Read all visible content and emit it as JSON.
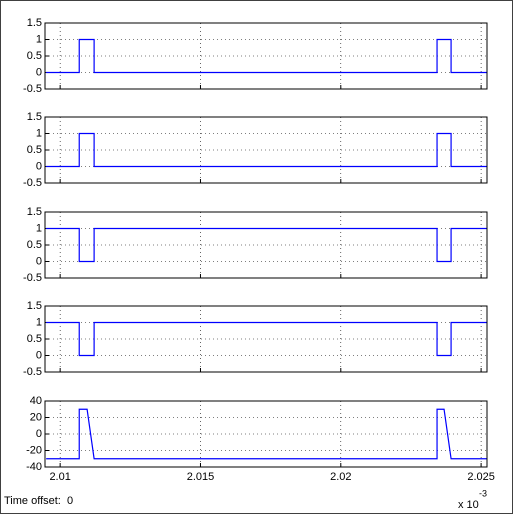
{
  "chart_data": [
    {
      "type": "line",
      "xlim": [
        2.00946,
        2.02521
      ],
      "xticks": [
        2.01,
        2.015,
        2.02,
        2.025
      ],
      "ylim": [
        -0.5,
        1.5
      ],
      "yticks": [
        -0.5,
        0,
        0.5,
        1,
        1.5
      ],
      "grid": true,
      "x": [
        2.0095,
        2.01068,
        2.01068,
        2.01121,
        2.01121,
        2.02343,
        2.02343,
        2.02393,
        2.02393,
        2.0252
      ],
      "series": [
        {
          "color": "#0000ff",
          "values": [
            0,
            0,
            1,
            1,
            0,
            0,
            1,
            1,
            0,
            0
          ]
        }
      ]
    },
    {
      "type": "line",
      "xlim": [
        2.00946,
        2.02521
      ],
      "xticks": [
        2.01,
        2.015,
        2.02,
        2.025
      ],
      "ylim": [
        -0.5,
        1.5
      ],
      "yticks": [
        -0.5,
        0,
        0.5,
        1,
        1.5
      ],
      "grid": true,
      "x": [
        2.0095,
        2.01068,
        2.01068,
        2.01121,
        2.01121,
        2.02343,
        2.02343,
        2.02393,
        2.02393,
        2.0252
      ],
      "series": [
        {
          "color": "#0000ff",
          "values": [
            0,
            0,
            1,
            1,
            0,
            0,
            1,
            1,
            0,
            0
          ]
        }
      ]
    },
    {
      "type": "line",
      "xlim": [
        2.00946,
        2.02521
      ],
      "xticks": [
        2.01,
        2.015,
        2.02,
        2.025
      ],
      "ylim": [
        -0.5,
        1.5
      ],
      "yticks": [
        -0.5,
        0,
        0.5,
        1,
        1.5
      ],
      "grid": true,
      "x": [
        2.0095,
        2.01068,
        2.01068,
        2.01121,
        2.01121,
        2.02343,
        2.02343,
        2.02393,
        2.02393,
        2.0252
      ],
      "series": [
        {
          "color": "#0000ff",
          "values": [
            1,
            1,
            0,
            0,
            1,
            1,
            0,
            0,
            1,
            1
          ]
        }
      ]
    },
    {
      "type": "line",
      "xlim": [
        2.00946,
        2.02521
      ],
      "xticks": [
        2.01,
        2.015,
        2.02,
        2.025
      ],
      "ylim": [
        -0.5,
        1.5
      ],
      "yticks": [
        -0.5,
        0,
        0.5,
        1,
        1.5
      ],
      "grid": true,
      "x": [
        2.0095,
        2.01068,
        2.01068,
        2.01121,
        2.01121,
        2.02343,
        2.02343,
        2.02393,
        2.02393,
        2.0252
      ],
      "series": [
        {
          "color": "#0000ff",
          "values": [
            1,
            1,
            0,
            0,
            1,
            1,
            0,
            0,
            1,
            1
          ]
        }
      ]
    },
    {
      "type": "line",
      "xlim": [
        2.00946,
        2.02521
      ],
      "xticks": [
        2.01,
        2.015,
        2.02,
        2.025
      ],
      "ylim": [
        -40,
        40
      ],
      "yticks": [
        -40,
        -20,
        0,
        20,
        40
      ],
      "grid": true,
      "x": [
        2.0095,
        2.01068,
        2.01068,
        2.01096,
        2.01121,
        2.02343,
        2.02343,
        2.02368,
        2.02393,
        2.0252
      ],
      "series": [
        {
          "color": "#0000ff",
          "values": [
            -30,
            -30,
            30,
            30,
            -30,
            -30,
            30,
            30,
            -30,
            -30
          ]
        }
      ]
    }
  ],
  "footer": {
    "time_offset_label": "Time offset:",
    "time_offset": 0,
    "multiplier": "x 10",
    "exponent": "-3"
  }
}
